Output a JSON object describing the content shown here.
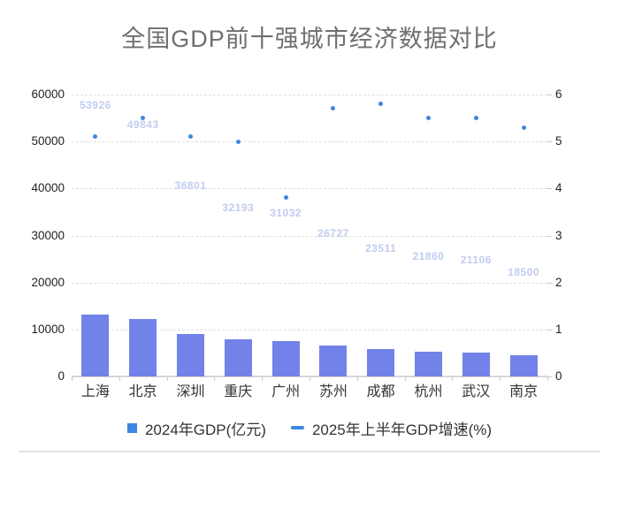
{
  "page": {
    "background_color": "#ffffff",
    "divider_color": "#e4e4e4"
  },
  "chart": {
    "title": "全国GDP前十强城市经济数据对比",
    "title_color": "#6f6f6f"
  },
  "chart_data": {
    "type": "bar",
    "title": "全国GDP前十强城市经济数据对比",
    "categories": [
      "上海",
      "北京",
      "深圳",
      "重庆",
      "广州",
      "苏州",
      "成都",
      "杭州",
      "武汉",
      "南京"
    ],
    "series": [
      {
        "name": "2024年GDP(亿元)",
        "type": "bar",
        "axis": "left",
        "values": [
          53926,
          49843,
          36801,
          32193,
          31032,
          26727,
          23511,
          21860,
          21106,
          18500
        ],
        "color": "#7282e8",
        "data_label_color": "#c3cbf1",
        "legend_marker": "square",
        "legend_marker_color": "#3e86e2"
      },
      {
        "name": "2025年上半年GDP增速(%)",
        "type": "scatter",
        "axis": "right",
        "values": [
          5.1,
          5.5,
          5.1,
          5.0,
          3.8,
          5.7,
          5.8,
          5.5,
          5.5,
          5.3
        ],
        "color": "#3e86e2",
        "legend_marker": "dash",
        "legend_marker_color": "#3e86e2"
      }
    ],
    "y_left": {
      "min": 0,
      "max": 60000,
      "ticks": [
        0,
        10000,
        20000,
        30000,
        40000,
        50000,
        60000
      ]
    },
    "y_right": {
      "min": 0,
      "max": 6,
      "ticks": [
        0,
        1,
        2,
        3,
        4,
        5,
        6
      ]
    },
    "grid": "horizontal-dashed",
    "legend_position": "bottom",
    "data_labels_shown": true,
    "bar_render_fraction": 0.245
  }
}
